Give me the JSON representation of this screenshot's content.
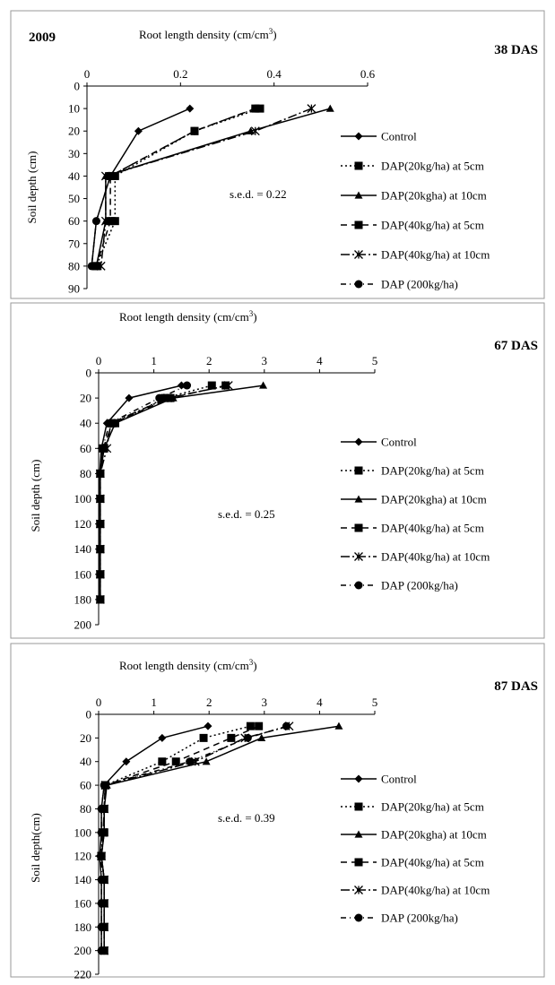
{
  "series_styles": [
    {
      "marker": "diamond",
      "dash": ""
    },
    {
      "marker": "square",
      "dash": "2,3"
    },
    {
      "marker": "triangle",
      "dash": ""
    },
    {
      "marker": "square",
      "dash": "7,5"
    },
    {
      "marker": "star",
      "dash": "10,3,2,3"
    },
    {
      "marker": "circle",
      "dash": "6,4,1,4"
    }
  ],
  "chart_data": [
    {
      "type": "line",
      "year_label": "2009",
      "title": "38 DAS",
      "xlabel": "Root length density (cm/cm3)",
      "xlabel_main": "Root length density (cm/cm",
      "xlabel_sup": "3",
      "xlabel_end": ")",
      "ylabel": "Soil depth (cm)",
      "xlim": [
        0,
        0.6
      ],
      "ylim": [
        0,
        90
      ],
      "xticks": [
        "0",
        "0.2",
        "0.4",
        "0.6"
      ],
      "yticks": [
        "0",
        "10",
        "20",
        "30",
        "40",
        "50",
        "60",
        "70",
        "80",
        "90"
      ],
      "annotation": "s.e.d. = 0.22",
      "series": [
        {
          "name": "Control",
          "points": [
            [
              0.22,
              10
            ],
            [
              0.11,
              20
            ],
            [
              0.05,
              40
            ],
            [
              0.02,
              60
            ],
            [
              0.01,
              80
            ]
          ]
        },
        {
          "name": "DAP(20kg/ha) at 5cm",
          "points": [
            [
              0.37,
              10
            ],
            [
              0.23,
              20
            ],
            [
              0.06,
              40
            ],
            [
              0.06,
              60
            ],
            [
              0.02,
              80
            ]
          ]
        },
        {
          "name": "DAP(20kgha) at 10cm",
          "points": [
            [
              0.52,
              10
            ],
            [
              0.35,
              20
            ],
            [
              0.04,
              40
            ],
            [
              0.04,
              60
            ],
            [
              0.02,
              80
            ]
          ]
        },
        {
          "name": "DAP(40kg/ha) at 5cm",
          "points": [
            [
              0.36,
              10
            ],
            [
              0.23,
              20
            ],
            [
              0.05,
              40
            ],
            [
              0.05,
              60
            ],
            [
              0.02,
              80
            ]
          ]
        },
        {
          "name": "DAP(40kg/ha) at 10cm",
          "points": [
            [
              0.48,
              10
            ],
            [
              0.36,
              20
            ],
            [
              0.04,
              40
            ],
            [
              0.04,
              60
            ],
            [
              0.03,
              80
            ]
          ]
        },
        {
          "name": "DAP (200kg/ha)",
          "points": [
            [
              0.36,
              10
            ],
            [
              0.23,
              20
            ],
            [
              0.05,
              40
            ],
            [
              0.02,
              60
            ],
            [
              0.01,
              80
            ]
          ]
        }
      ]
    },
    {
      "type": "line",
      "title": "67 DAS",
      "xlabel": "Root length density (cm/cm3)",
      "xlabel_main": "Root length density (cm/cm",
      "xlabel_sup": "3",
      "xlabel_end": ")",
      "ylabel": "Soil depth (cm)",
      "xlim": [
        0,
        5
      ],
      "ylim": [
        0,
        200
      ],
      "xticks": [
        "0",
        "1",
        "2",
        "3",
        "4",
        "5"
      ],
      "yticks": [
        "0",
        "20",
        "40",
        "60",
        "80",
        "100",
        "120",
        "140",
        "160",
        "180",
        "200"
      ],
      "annotation": "s.e.d. = 0.25",
      "series": [
        {
          "name": "Control",
          "points": [
            [
              1.5,
              10
            ],
            [
              0.55,
              20
            ],
            [
              0.15,
              40
            ],
            [
              0.05,
              60
            ],
            [
              0.02,
              80
            ],
            [
              0.02,
              100
            ],
            [
              0.02,
              120
            ],
            [
              0.02,
              140
            ],
            [
              0.02,
              160
            ],
            [
              0.02,
              180
            ]
          ]
        },
        {
          "name": "DAP(20kg/ha) at 5cm",
          "points": [
            [
              2.05,
              10
            ],
            [
              1.2,
              20
            ],
            [
              0.3,
              40
            ],
            [
              0.1,
              60
            ],
            [
              0.03,
              80
            ],
            [
              0.03,
              100
            ],
            [
              0.03,
              120
            ],
            [
              0.03,
              140
            ],
            [
              0.03,
              160
            ],
            [
              0.03,
              180
            ]
          ]
        },
        {
          "name": "DAP(20kgha) at 10cm",
          "points": [
            [
              2.98,
              10
            ],
            [
              1.35,
              20
            ],
            [
              0.3,
              40
            ],
            [
              0.1,
              60
            ],
            [
              0.03,
              80
            ],
            [
              0.03,
              100
            ],
            [
              0.03,
              120
            ],
            [
              0.03,
              140
            ],
            [
              0.03,
              160
            ],
            [
              0.03,
              180
            ]
          ]
        },
        {
          "name": "DAP(40kg/ha) at 5cm",
          "points": [
            [
              2.3,
              10
            ],
            [
              1.3,
              20
            ],
            [
              0.25,
              40
            ],
            [
              0.08,
              60
            ],
            [
              0.03,
              80
            ],
            [
              0.03,
              100
            ],
            [
              0.03,
              120
            ],
            [
              0.03,
              140
            ],
            [
              0.03,
              160
            ],
            [
              0.03,
              180
            ]
          ]
        },
        {
          "name": "DAP(40kg/ha) at 10cm",
          "points": [
            [
              2.35,
              10
            ],
            [
              1.25,
              20
            ],
            [
              0.22,
              40
            ],
            [
              0.15,
              60
            ],
            [
              0.03,
              80
            ],
            [
              0.03,
              100
            ],
            [
              0.03,
              120
            ],
            [
              0.03,
              140
            ],
            [
              0.03,
              160
            ],
            [
              0.03,
              180
            ]
          ]
        },
        {
          "name": "DAP (200kg/ha)",
          "points": [
            [
              1.6,
              10
            ],
            [
              1.1,
              20
            ],
            [
              0.2,
              40
            ],
            [
              0.07,
              60
            ],
            [
              0.03,
              80
            ],
            [
              0.03,
              100
            ],
            [
              0.03,
              120
            ],
            [
              0.03,
              140
            ],
            [
              0.03,
              160
            ],
            [
              0.03,
              180
            ]
          ]
        }
      ]
    },
    {
      "type": "line",
      "title": "87 DAS",
      "xlabel": "Root length density (cm/cm3)",
      "xlabel_main": "Root length density (cm/cm",
      "xlabel_sup": "3",
      "xlabel_end": ")",
      "ylabel": "Soil depth(cm)",
      "xlim": [
        0,
        5
      ],
      "ylim": [
        0,
        220
      ],
      "xticks": [
        "0",
        "1",
        "2",
        "3",
        "4",
        "5"
      ],
      "yticks": [
        "0",
        "20",
        "40",
        "60",
        "80",
        "100",
        "120",
        "140",
        "160",
        "180",
        "200",
        "220"
      ],
      "annotation": "s.e.d. = 0.39",
      "series": [
        {
          "name": "Control",
          "points": [
            [
              1.98,
              10
            ],
            [
              1.15,
              20
            ],
            [
              0.5,
              40
            ],
            [
              0.1,
              60
            ],
            [
              0.05,
              80
            ],
            [
              0.05,
              100
            ],
            [
              0.02,
              120
            ],
            [
              0.05,
              140
            ],
            [
              0.05,
              160
            ],
            [
              0.05,
              180
            ],
            [
              0.05,
              200
            ]
          ]
        },
        {
          "name": "DAP(20kg/ha) at 5cm",
          "points": [
            [
              2.75,
              10
            ],
            [
              1.9,
              20
            ],
            [
              1.15,
              40
            ],
            [
              0.12,
              60
            ],
            [
              0.1,
              80
            ],
            [
              0.1,
              100
            ],
            [
              0.05,
              120
            ],
            [
              0.1,
              140
            ],
            [
              0.1,
              160
            ],
            [
              0.1,
              180
            ],
            [
              0.1,
              200
            ]
          ]
        },
        {
          "name": "DAP(20kgha) at 10cm",
          "points": [
            [
              4.35,
              10
            ],
            [
              2.95,
              20
            ],
            [
              1.95,
              40
            ],
            [
              0.15,
              60
            ],
            [
              0.1,
              80
            ],
            [
              0.1,
              100
            ],
            [
              0.05,
              120
            ],
            [
              0.1,
              140
            ],
            [
              0.1,
              160
            ],
            [
              0.1,
              180
            ],
            [
              0.1,
              200
            ]
          ]
        },
        {
          "name": "DAP(40kg/ha) at 5cm",
          "points": [
            [
              2.9,
              10
            ],
            [
              2.4,
              20
            ],
            [
              1.4,
              40
            ],
            [
              0.12,
              60
            ],
            [
              0.1,
              80
            ],
            [
              0.1,
              100
            ],
            [
              0.05,
              120
            ],
            [
              0.1,
              140
            ],
            [
              0.1,
              160
            ],
            [
              0.1,
              180
            ],
            [
              0.1,
              200
            ]
          ]
        },
        {
          "name": "DAP(40kg/ha) at 10cm",
          "points": [
            [
              3.45,
              10
            ],
            [
              2.65,
              20
            ],
            [
              1.75,
              40
            ],
            [
              0.12,
              60
            ],
            [
              0.1,
              80
            ],
            [
              0.08,
              100
            ],
            [
              0.05,
              120
            ],
            [
              0.1,
              140
            ],
            [
              0.1,
              160
            ],
            [
              0.1,
              180
            ],
            [
              0.1,
              200
            ]
          ]
        },
        {
          "name": "DAP (200kg/ha)",
          "points": [
            [
              3.4,
              10
            ],
            [
              2.7,
              20
            ],
            [
              1.65,
              40
            ],
            [
              0.1,
              60
            ],
            [
              0.05,
              80
            ],
            [
              0.05,
              100
            ],
            [
              0.05,
              120
            ],
            [
              0.05,
              140
            ],
            [
              0.05,
              160
            ],
            [
              0.05,
              180
            ],
            [
              0.05,
              200
            ]
          ]
        }
      ]
    }
  ]
}
